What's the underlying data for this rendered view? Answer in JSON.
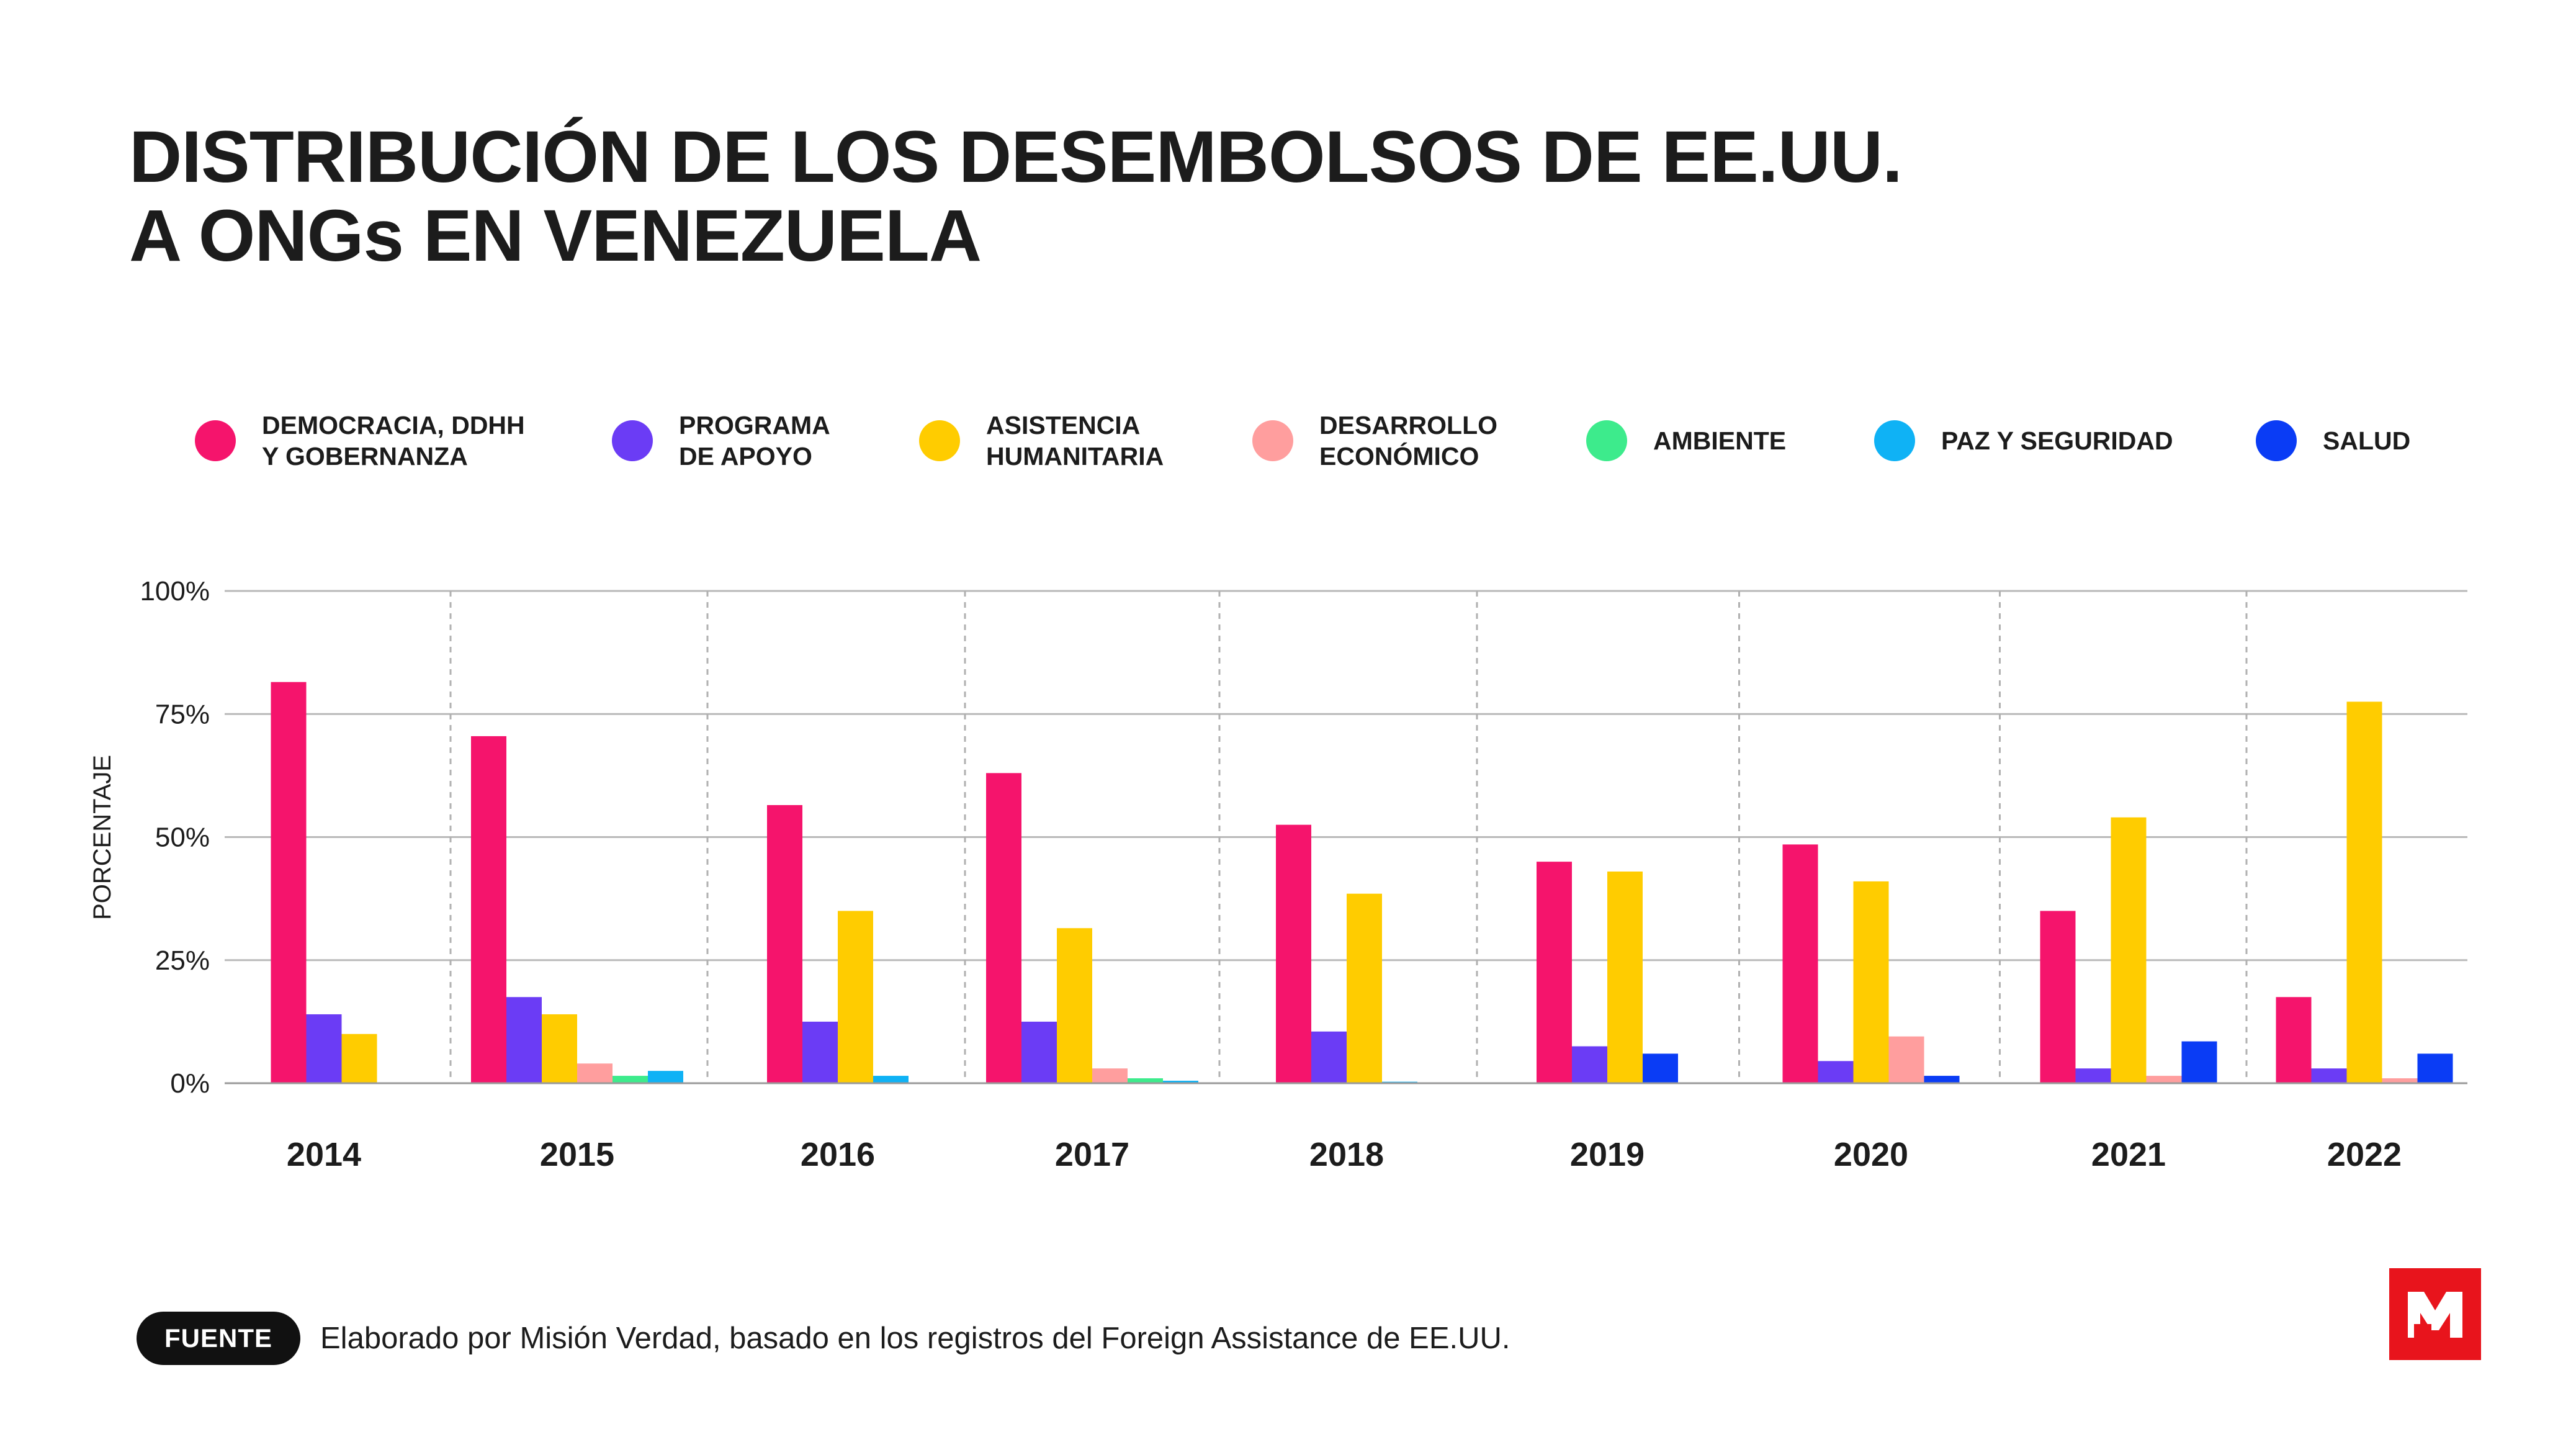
{
  "title": {
    "line1": "DISTRIBUCIÓN DE LOS DESEMBOLSOS DE EE.UU.",
    "line2": "A ONGs EN VENEZUELA"
  },
  "legend": [
    {
      "line1": "DEMOCRACIA, DDHH",
      "line2": "Y GOBERNANZA",
      "color": "#f5146c"
    },
    {
      "line1": "PROGRAMA",
      "line2": "DE APOYO",
      "color": "#6b3cf5"
    },
    {
      "line1": "ASISTENCIA",
      "line2": "HUMANITARIA",
      "color": "#ffcc00"
    },
    {
      "line1": "DESARROLLO",
      "line2": "ECONÓMICO",
      "color": "#ff9e9e"
    },
    {
      "line1": "AMBIENTE",
      "line2": "",
      "color": "#3deb8c"
    },
    {
      "line1": "PAZ Y SEGURIDAD",
      "line2": "",
      "color": "#0fb2f5"
    },
    {
      "line1": "SALUD",
      "line2": "",
      "color": "#0a3cf5"
    }
  ],
  "chart_data": {
    "type": "bar",
    "title": "DISTRIBUCIÓN DE LOS DESEMBOLSOS DE EE.UU. A ONGs EN VENEZUELA",
    "xlabel": "",
    "ylabel": "PORCENTAJE",
    "ylim": [
      0,
      100
    ],
    "yticks": [
      0,
      25,
      50,
      75,
      100
    ],
    "ytick_labels": [
      "0%",
      "25%",
      "50%",
      "75%",
      "100%"
    ],
    "grid": true,
    "legend_position": "top",
    "categories": [
      "2014",
      "2015",
      "2016",
      "2017",
      "2018",
      "2019",
      "2020",
      "2021",
      "2022"
    ],
    "series": [
      {
        "name": "DEMOCRACIA, DDHH Y GOBERNANZA",
        "color": "#f5146c",
        "values": [
          81.5,
          70.5,
          56.5,
          63,
          52.5,
          45,
          48.5,
          35,
          17.5
        ]
      },
      {
        "name": "PROGRAMA DE APOYO",
        "color": "#6b3cf5",
        "values": [
          14,
          17.5,
          12.5,
          12.5,
          10.5,
          7.5,
          4.5,
          3,
          3
        ]
      },
      {
        "name": "ASISTENCIA HUMANITARIA",
        "color": "#ffcc00",
        "values": [
          10,
          14,
          35,
          31.5,
          38.5,
          43,
          41,
          54,
          77.5
        ]
      },
      {
        "name": "DESARROLLO ECONÓMICO",
        "color": "#ff9e9e",
        "values": [
          0,
          4,
          0,
          3,
          0,
          0,
          9.5,
          1.5,
          1
        ]
      },
      {
        "name": "AMBIENTE",
        "color": "#3deb8c",
        "values": [
          0,
          1.5,
          0,
          1,
          0,
          0,
          0,
          0,
          0
        ]
      },
      {
        "name": "PAZ Y SEGURIDAD",
        "color": "#0fb2f5",
        "values": [
          0,
          2.5,
          1.5,
          0.5,
          0.3,
          0,
          0,
          0,
          0
        ]
      },
      {
        "name": "SALUD",
        "color": "#0a3cf5",
        "values": [
          0,
          0,
          0,
          0,
          0,
          6,
          1.5,
          8.5,
          6
        ]
      }
    ]
  },
  "footer": {
    "badge": "FUENTE",
    "source": "Elaborado por Misión Verdad, basado en los registros del Foreign Assistance de EE.UU."
  },
  "logo": {
    "mark": "M",
    "color": "#e8141c"
  }
}
